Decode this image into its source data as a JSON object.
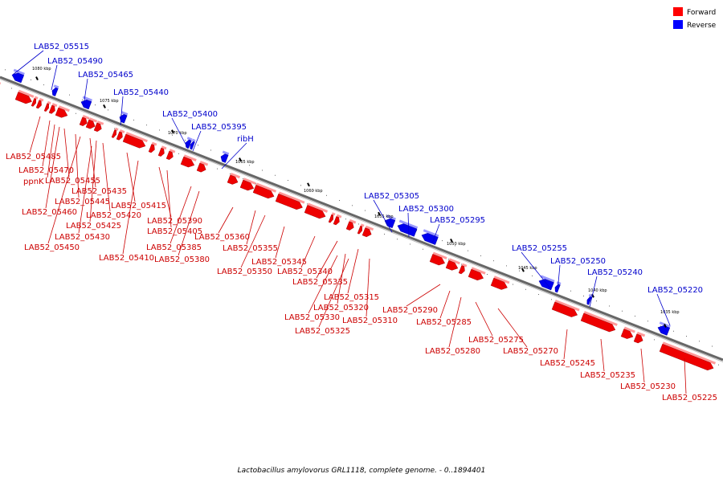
{
  "legend": {
    "forward_label": "Forward",
    "reverse_label": "Reverse",
    "forward_color": "#ff0000",
    "reverse_color": "#0000ff"
  },
  "caption": "Lactobacillus amylovorus GRL1118, complete genome. - 0..1894401",
  "scale_ticks": [
    "1080 kbp",
    "1075 kbp",
    "1070 kbp",
    "1065 kbp",
    "1060 kbp",
    "1055 kbp",
    "1050 kbp",
    "1045 kbp",
    "1040 kbp",
    "1035 kbp"
  ],
  "reverse_genes": [
    "LAB52_05515",
    "LAB52_05490",
    "LAB52_05465",
    "LAB52_05440",
    "LAB52_05400",
    "LAB52_05395",
    "ribH",
    "LAB52_05305",
    "LAB52_05300",
    "LAB52_05295",
    "LAB52_05255",
    "LAB52_05250",
    "LAB52_05240",
    "LAB52_05220"
  ],
  "forward_genes": [
    "LAB52_05485",
    "LAB52_05470",
    "ppnK",
    "LAB52_05455",
    "LAB52_05435",
    "LAB52_05445",
    "LAB52_05460",
    "LAB52_05420",
    "LAB52_05425",
    "LAB52_05430",
    "LAB52_05450",
    "LAB52_05415",
    "LAB52_05410",
    "LAB52_05405",
    "LAB52_05390",
    "LAB52_05385",
    "LAB52_05380",
    "LAB52_05360",
    "LAB52_05355",
    "LAB52_05350",
    "LAB52_05345",
    "LAB52_05340",
    "LAB52_05335",
    "LAB52_05315",
    "LAB52_05320",
    "LAB52_05330",
    "LAB52_05325",
    "LAB52_05310",
    "LAB52_05290",
    "LAB52_05285",
    "LAB52_05280",
    "LAB52_05275",
    "LAB52_05270",
    "LAB52_05245",
    "LAB52_05235",
    "LAB52_05230",
    "LAB52_05225"
  ]
}
